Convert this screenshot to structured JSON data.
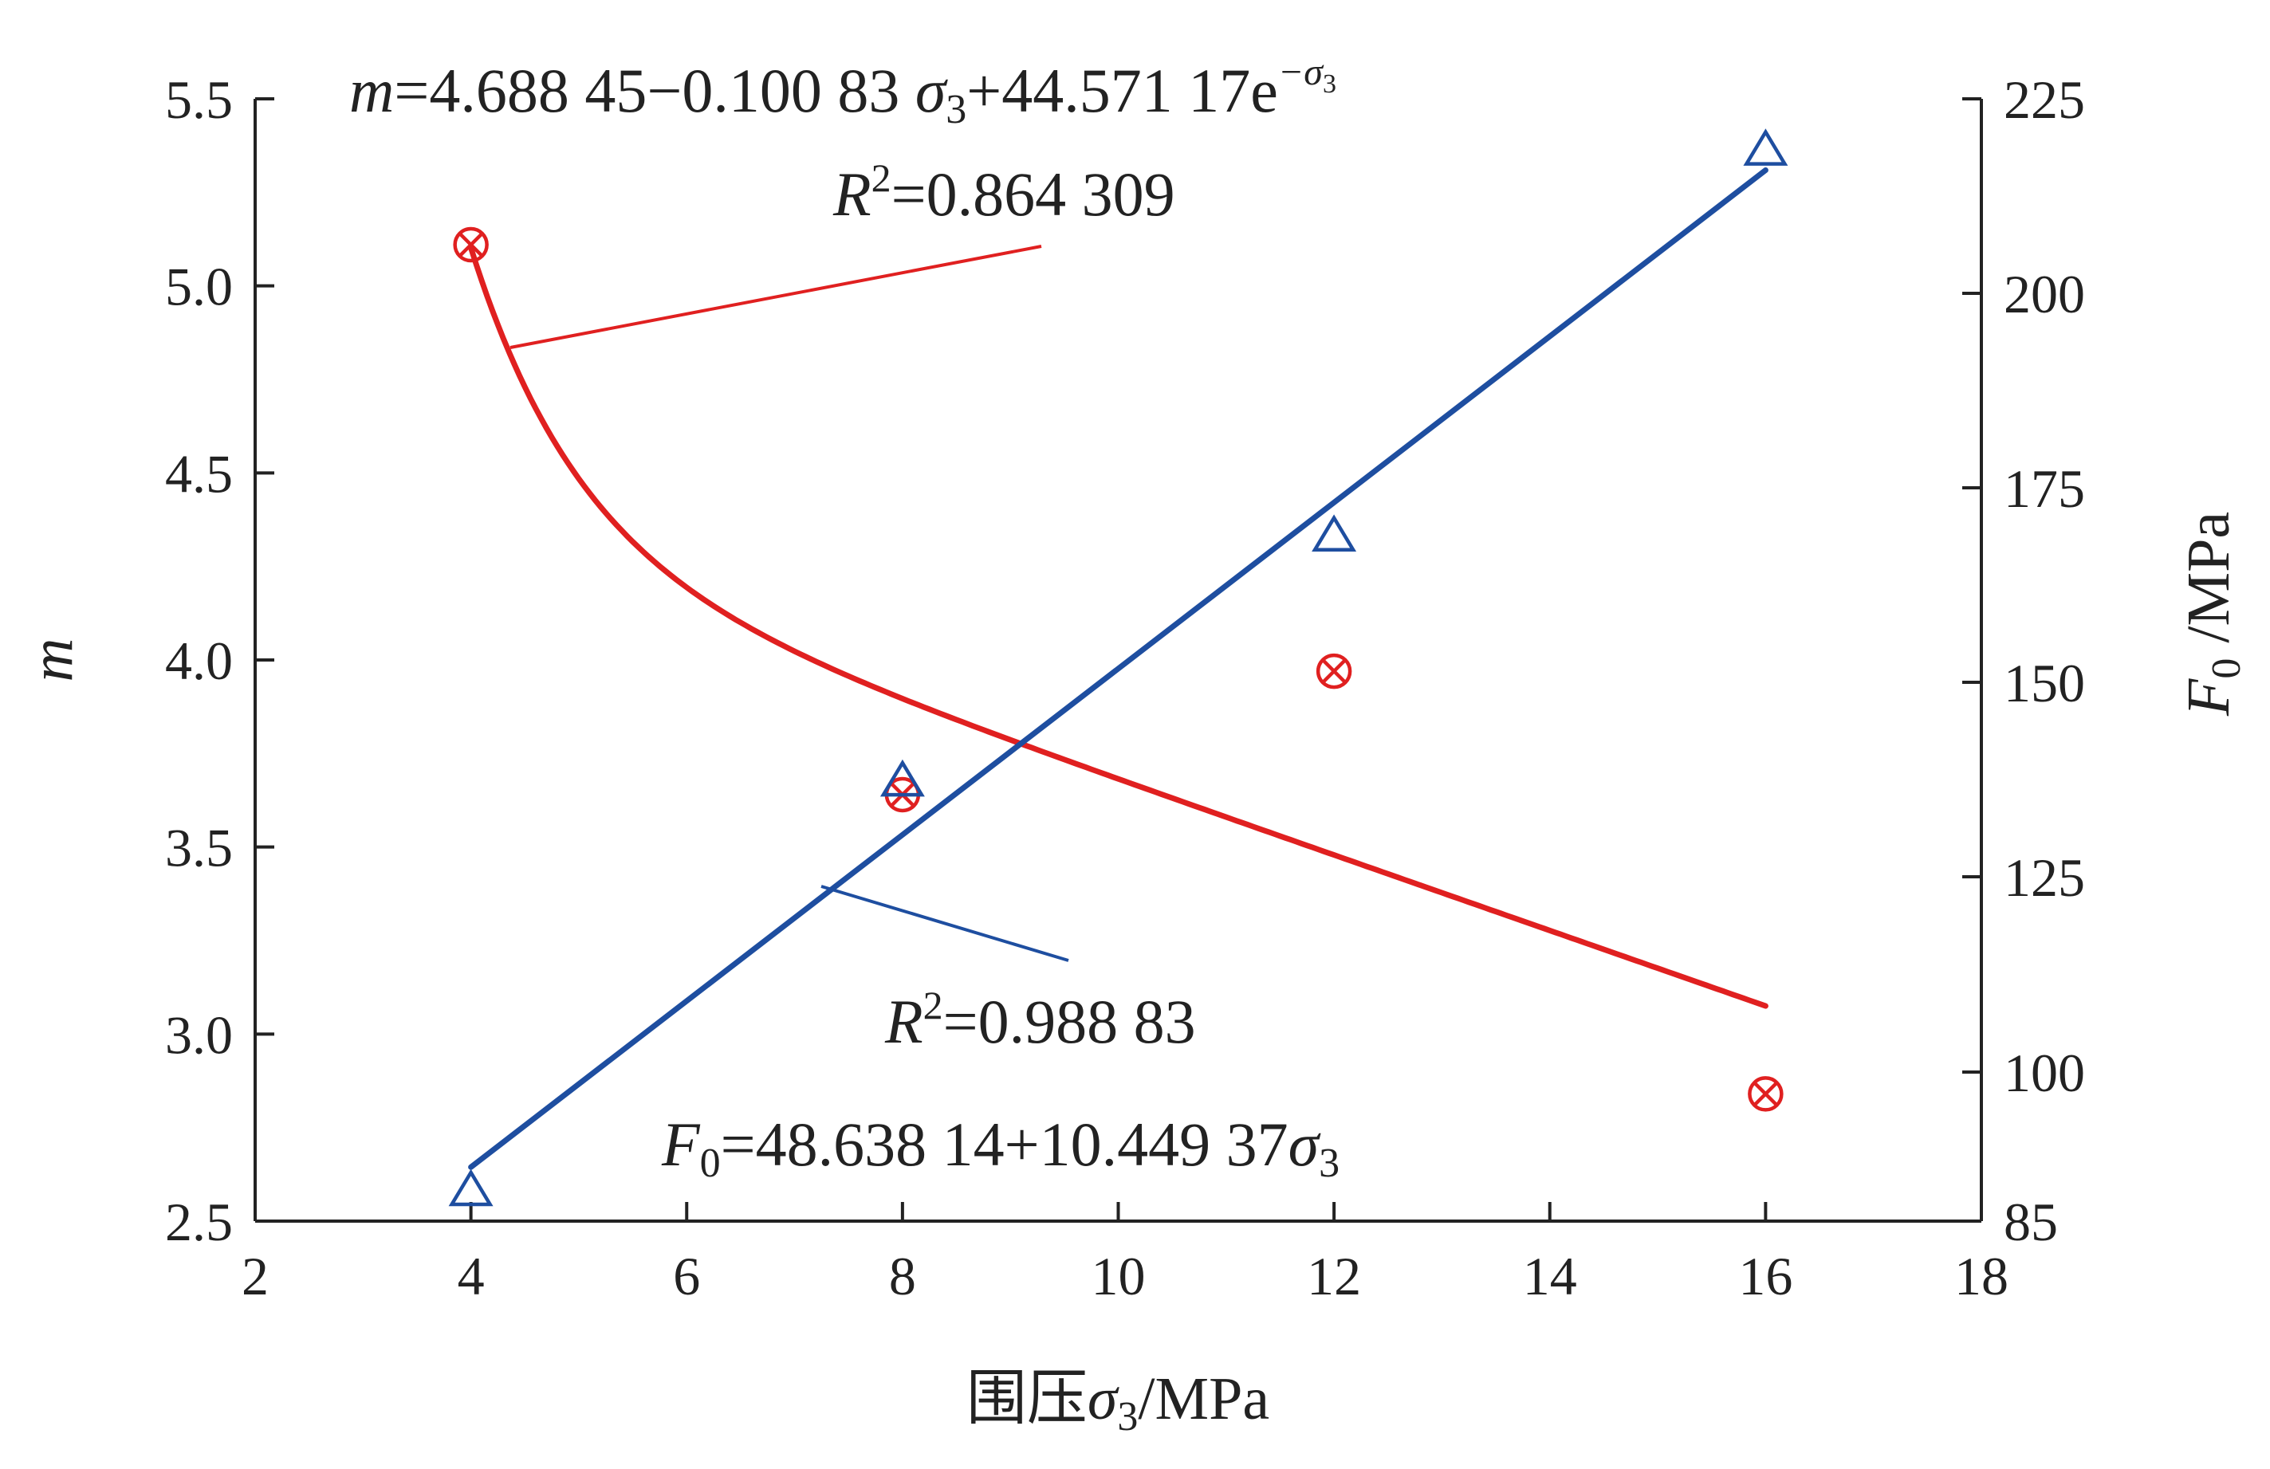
{
  "chart_data": {
    "type": "scatter",
    "xlabel_prefix": "围压",
    "xlabel_symbol": "σ",
    "xlabel_sub": "3",
    "xlabel_unit": "/MPa",
    "ylabel_left": "m",
    "ylabel_right_symbol": "F",
    "ylabel_right_sub": "0",
    "ylabel_right_unit": " /MPa",
    "xlim": [
      2,
      18
    ],
    "ylim_left": [
      2.5,
      5.5
    ],
    "ylim_right": [
      85,
      225
    ],
    "xticks": [
      "2",
      "4",
      "6",
      "8",
      "10",
      "12",
      "14",
      "16",
      "18"
    ],
    "yticks_left": [
      "2.5",
      "3.0",
      "3.5",
      "4.0",
      "4.5",
      "5.0",
      "5.5"
    ],
    "yticks_right": [
      "85",
      "100",
      "125",
      "150",
      "175",
      "200",
      "225"
    ],
    "series": [
      {
        "axis": "left",
        "color": "#e02020",
        "marker": "circle-x",
        "x": [
          4,
          8,
          12,
          16
        ],
        "y": [
          5.11,
          3.64,
          3.97,
          2.84
        ],
        "fit": {
          "a": 4.68845,
          "b": -0.10083,
          "c": 44.57117
        }
      },
      {
        "axis": "right",
        "color": "#1e4ea0",
        "marker": "triangle",
        "x": [
          4,
          8,
          12,
          16
        ],
        "y": [
          87.9,
          137.1,
          168.6,
          218.2
        ],
        "fit": {
          "a": 48.63814,
          "b": 10.44937
        }
      }
    ],
    "annotations": {
      "m_eq_lhs": "m",
      "m_eq_mid": "=4.688 45−0.100 83  ",
      "m_eq_sigma": "σ",
      "m_eq_sub": "3",
      "m_eq_rest": "+44.571 17e",
      "m_eq_sup": "−σ",
      "m_eq_supsub": "3",
      "m_r2_label": "R",
      "m_r2_sup": "2",
      "m_r2_value": "=0.864 309",
      "f_r2_label": "R",
      "f_r2_sup": "2",
      "f_r2_value": "=0.988 83",
      "f_eq_lhs": "F",
      "f_eq_lhs_sub": "0",
      "f_eq_mid": "=48.638 14+10.449 37",
      "f_eq_sigma": "σ",
      "f_eq_sub": "3"
    }
  }
}
